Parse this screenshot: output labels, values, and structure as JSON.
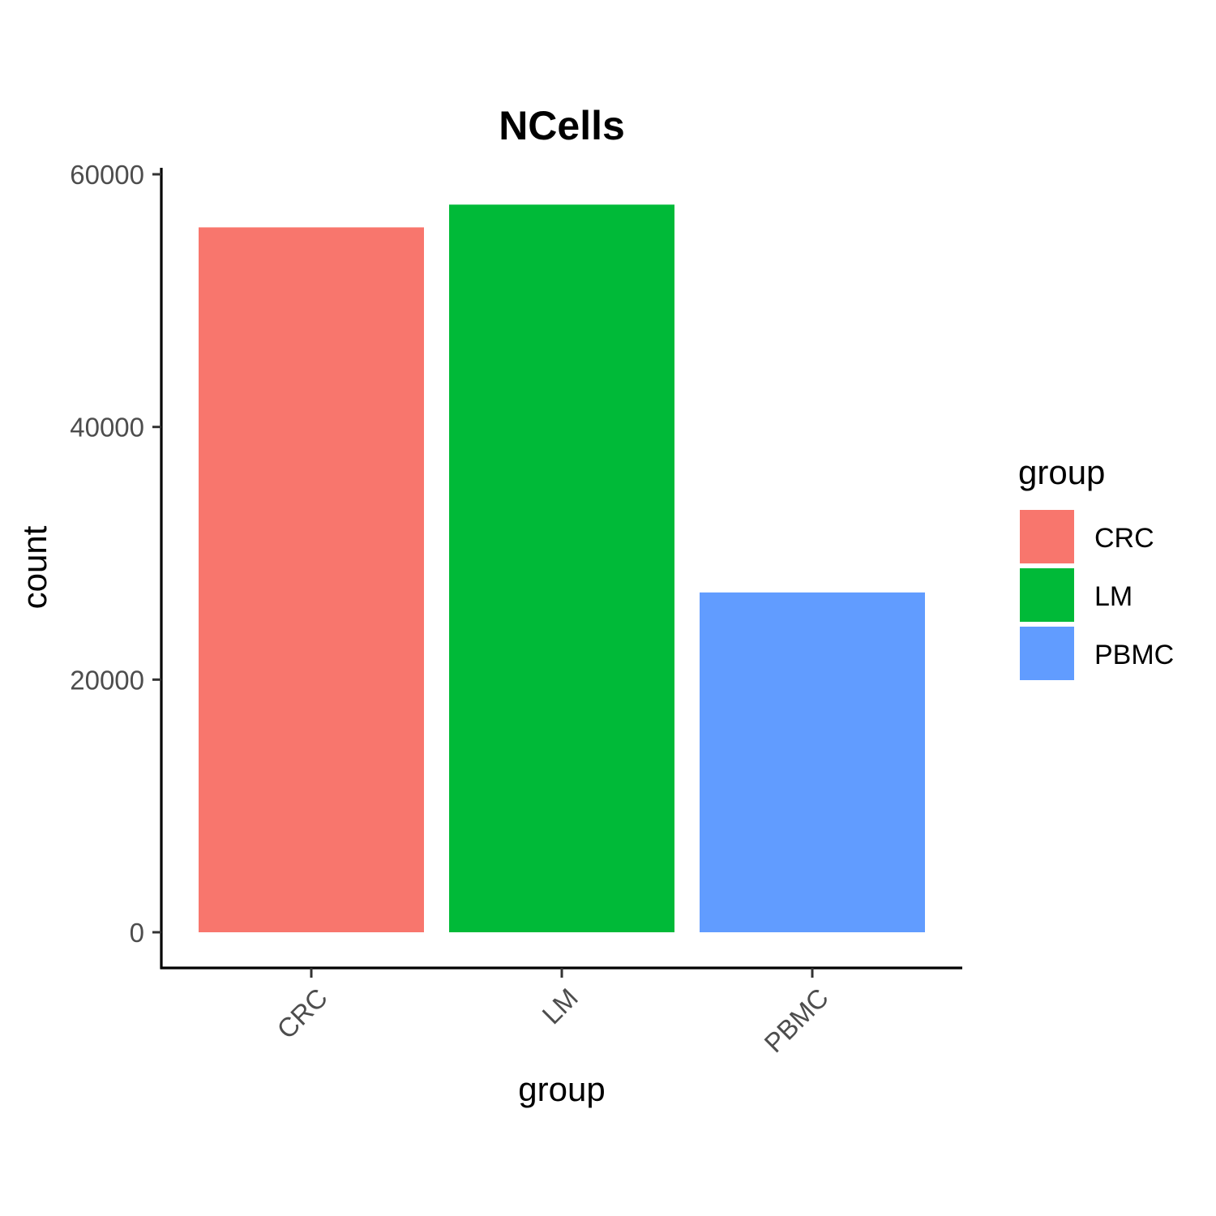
{
  "chart_data": {
    "type": "bar",
    "title": "NCells",
    "xlabel": "group",
    "ylabel": "count",
    "categories": [
      "CRC",
      "LM",
      "PBMC"
    ],
    "values": [
      55800,
      57600,
      26900
    ],
    "colors": [
      "#F8766D",
      "#00BA38",
      "#619CFF"
    ],
    "ylim": [
      0,
      60000
    ],
    "yticks": [
      0,
      20000,
      40000,
      60000
    ],
    "ytick_labels": [
      "0",
      "20000",
      "40000",
      "60000"
    ],
    "grid": false,
    "legend": {
      "title": "group",
      "placement": "right",
      "items": [
        "CRC",
        "LM",
        "PBMC"
      ]
    }
  }
}
